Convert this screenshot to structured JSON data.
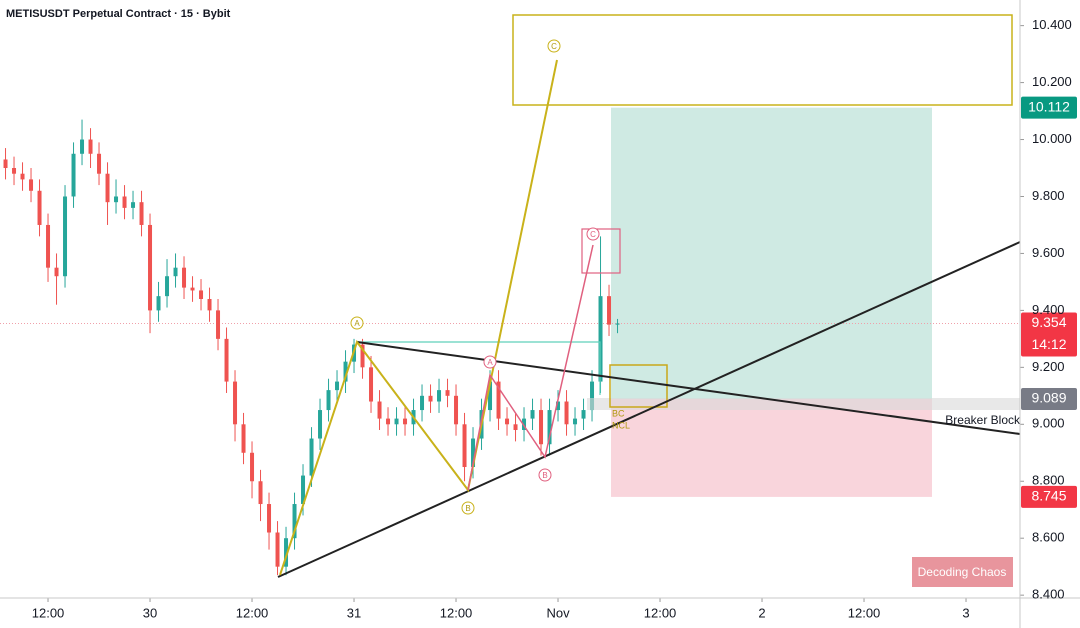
{
  "chart_data": {
    "type": "candlestick",
    "title": "METISUSDT Perpetual Contract · 15 · Bybit",
    "x": [
      -5,
      -4,
      -3,
      -2,
      -1,
      0,
      1,
      2,
      3,
      4,
      5,
      6,
      7,
      8,
      9,
      10,
      11,
      12,
      13,
      14,
      15,
      16,
      17,
      18,
      19,
      20,
      21,
      22,
      23,
      24,
      25,
      26,
      27,
      28,
      29,
      30,
      31,
      32,
      33,
      34,
      35,
      36,
      37,
      38,
      39,
      40,
      41,
      42,
      43,
      44,
      45,
      46,
      47,
      48,
      49,
      50,
      51,
      52,
      53,
      54,
      55,
      56,
      57,
      58,
      59,
      60,
      61,
      62,
      63,
      64,
      65,
      66,
      67
    ],
    "open": [
      9.93,
      9.9,
      9.88,
      9.86,
      9.82,
      9.7,
      9.55,
      9.52,
      9.8,
      9.95,
      10.0,
      9.95,
      9.88,
      9.78,
      9.8,
      9.76,
      9.78,
      9.7,
      9.4,
      9.45,
      9.52,
      9.55,
      9.48,
      9.47,
      9.44,
      9.4,
      9.3,
      9.15,
      9.0,
      8.9,
      8.8,
      8.72,
      8.62,
      8.5,
      8.6,
      8.72,
      8.82,
      8.95,
      9.05,
      9.12,
      9.15,
      9.22,
      9.28,
      9.2,
      9.08,
      9.02,
      9.0,
      9.02,
      9.0,
      9.05,
      9.1,
      9.08,
      9.12,
      9.1,
      9.0,
      8.85,
      8.95,
      9.05,
      9.15,
      9.02,
      9.0,
      8.98,
      9.02,
      9.05,
      8.93,
      9.05,
      9.08,
      9.0,
      9.02,
      9.05,
      9.15,
      9.45,
      9.35
    ],
    "high": [
      9.97,
      9.94,
      9.92,
      9.9,
      9.86,
      9.74,
      9.6,
      9.84,
      9.99,
      10.07,
      10.04,
      9.99,
      9.92,
      9.86,
      9.84,
      9.82,
      9.82,
      9.74,
      9.5,
      9.58,
      9.6,
      9.59,
      9.52,
      9.51,
      9.48,
      9.44,
      9.34,
      9.19,
      9.04,
      8.94,
      8.84,
      8.76,
      8.66,
      8.64,
      8.76,
      8.86,
      8.99,
      9.09,
      9.16,
      9.19,
      9.26,
      9.3,
      9.3,
      9.24,
      9.12,
      9.06,
      9.06,
      9.06,
      9.09,
      9.14,
      9.14,
      9.16,
      9.16,
      9.14,
      9.04,
      8.99,
      9.09,
      9.19,
      9.19,
      9.06,
      9.04,
      9.06,
      9.09,
      9.09,
      9.09,
      9.12,
      9.12,
      9.06,
      9.09,
      9.19,
      9.66,
      9.49,
      9.37
    ],
    "low": [
      9.86,
      9.84,
      9.82,
      9.78,
      9.66,
      9.5,
      9.42,
      9.48,
      9.76,
      9.91,
      9.9,
      9.84,
      9.7,
      9.74,
      9.72,
      9.72,
      9.66,
      9.32,
      9.36,
      9.41,
      9.48,
      9.44,
      9.43,
      9.4,
      9.36,
      9.26,
      9.11,
      8.94,
      8.86,
      8.74,
      8.66,
      8.56,
      8.47,
      8.47,
      8.56,
      8.68,
      8.78,
      8.91,
      9.01,
      9.08,
      9.11,
      9.18,
      9.16,
      9.04,
      8.98,
      8.96,
      8.96,
      8.96,
      8.96,
      9.01,
      9.04,
      9.04,
      9.06,
      8.96,
      8.8,
      8.81,
      8.91,
      9.01,
      8.98,
      8.96,
      8.94,
      8.94,
      8.98,
      8.89,
      8.89,
      9.01,
      8.96,
      8.96,
      8.98,
      9.01,
      9.11,
      9.31,
      9.32
    ],
    "close": [
      9.9,
      9.88,
      9.86,
      9.82,
      9.7,
      9.55,
      9.52,
      9.8,
      9.95,
      10.0,
      9.95,
      9.88,
      9.78,
      9.8,
      9.76,
      9.78,
      9.7,
      9.4,
      9.45,
      9.52,
      9.55,
      9.48,
      9.47,
      9.44,
      9.4,
      9.3,
      9.15,
      9.0,
      8.9,
      8.8,
      8.72,
      8.62,
      8.5,
      8.6,
      8.72,
      8.82,
      8.95,
      9.05,
      9.12,
      9.15,
      9.22,
      9.28,
      9.2,
      9.08,
      9.02,
      9.0,
      9.02,
      9.0,
      9.05,
      9.1,
      9.08,
      9.12,
      9.1,
      9.0,
      8.85,
      8.95,
      9.05,
      9.15,
      9.02,
      9.0,
      8.98,
      9.02,
      9.05,
      8.93,
      9.05,
      9.08,
      9.0,
      9.02,
      9.05,
      9.15,
      9.45,
      9.35,
      9.354
    ],
    "up_color": "#26a69a",
    "down_color": "#ef5350",
    "xlim": [
      -5.65,
      114.35
    ],
    "ylim": [
      8.39,
      10.49
    ],
    "xticks": [
      {
        "value": 0,
        "label": "12:00"
      },
      {
        "value": 12,
        "label": "30"
      },
      {
        "value": 24,
        "label": "12:00"
      },
      {
        "value": 36,
        "label": "31"
      },
      {
        "value": 48,
        "label": "12:00"
      },
      {
        "value": 60,
        "label": "Nov"
      },
      {
        "value": 72,
        "label": "12:00"
      },
      {
        "value": 84,
        "label": "2"
      },
      {
        "value": 96,
        "label": "12:00"
      },
      {
        "value": 108,
        "label": "3"
      }
    ],
    "yticks": [
      {
        "value": 8.4,
        "label": "8.400"
      },
      {
        "value": 8.6,
        "label": "8.600"
      },
      {
        "value": 8.8,
        "label": "8.800"
      },
      {
        "value": 9.0,
        "label": "9.000"
      },
      {
        "value": 9.2,
        "label": "9.200"
      },
      {
        "value": 9.4,
        "label": "9.400"
      },
      {
        "value": 9.6,
        "label": "9.600"
      },
      {
        "value": 9.8,
        "label": "9.800"
      },
      {
        "value": 10.0,
        "label": "10.000"
      },
      {
        "value": 10.2,
        "label": "10.200"
      },
      {
        "value": 10.4,
        "label": "10.400"
      }
    ],
    "price_tags": [
      {
        "value": 10.112,
        "color": "#089981"
      },
      {
        "value": 9.354,
        "color": "#f23645",
        "countdown": "14:12"
      },
      {
        "value": 9.089,
        "color": "#787b86"
      },
      {
        "value": 8.745,
        "color": "#f23645"
      }
    ],
    "annotations": {
      "wave_a": "A",
      "wave_b": "B",
      "wave_c": "C",
      "sub_a": "A",
      "sub_b": "B",
      "sub_c": "C",
      "breaker_block": "Breaker Block",
      "bc": "BC",
      "ncl": "NCL",
      "watermark": "Decoding Chaos"
    }
  }
}
